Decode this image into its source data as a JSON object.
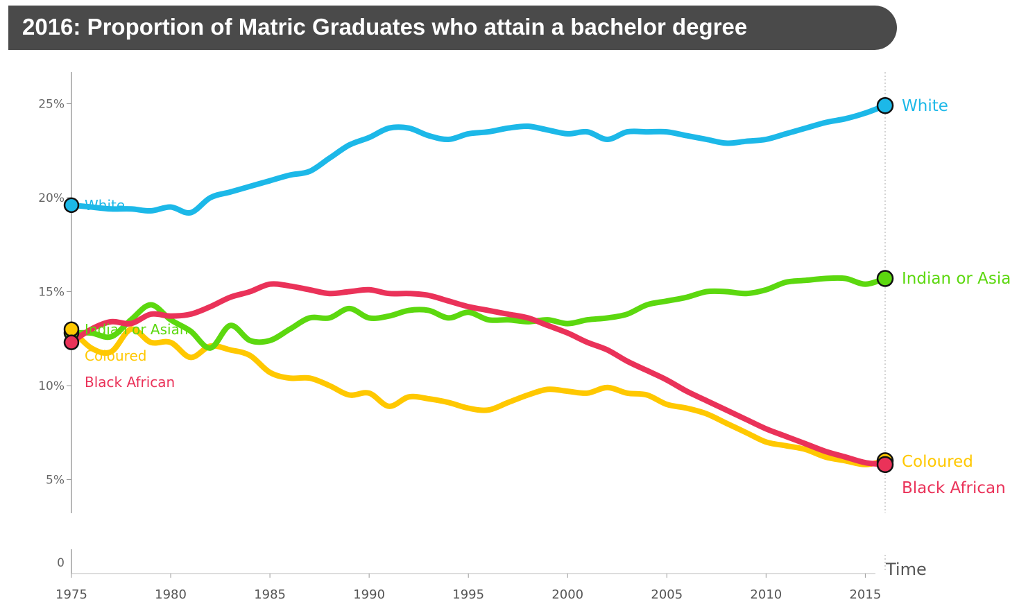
{
  "chart_data": {
    "type": "line",
    "title": "2016: Proportion of Matric Graduates who attain a bachelor degree",
    "xlabel": "Time",
    "ylabel": "",
    "x_ticks": [
      "1975",
      "1980",
      "1985",
      "1990",
      "1995",
      "2000",
      "2005",
      "2010",
      "2015"
    ],
    "y_ticks": [
      "0",
      "5%",
      "10%",
      "15%",
      "20%",
      "25%"
    ],
    "y_tick_values": [
      0,
      5,
      10,
      15,
      20,
      25
    ],
    "xlim": [
      1975,
      2016
    ],
    "ylim": [
      0,
      27
    ],
    "grid": false,
    "series": [
      {
        "name": "White",
        "color": "#1cb8e8",
        "points": [
          [
            1975,
            19.6
          ],
          [
            1976,
            19.5
          ],
          [
            1977,
            19.4
          ],
          [
            1978,
            19.4
          ],
          [
            1979,
            19.3
          ],
          [
            1980,
            19.5
          ],
          [
            1981,
            19.2
          ],
          [
            1982,
            20.0
          ],
          [
            1983,
            20.3
          ],
          [
            1984,
            20.6
          ],
          [
            1985,
            20.9
          ],
          [
            1986,
            21.2
          ],
          [
            1987,
            21.4
          ],
          [
            1988,
            22.1
          ],
          [
            1989,
            22.8
          ],
          [
            1990,
            23.2
          ],
          [
            1991,
            23.7
          ],
          [
            1992,
            23.7
          ],
          [
            1993,
            23.3
          ],
          [
            1994,
            23.1
          ],
          [
            1995,
            23.4
          ],
          [
            1996,
            23.5
          ],
          [
            1997,
            23.7
          ],
          [
            1998,
            23.8
          ],
          [
            1999,
            23.6
          ],
          [
            2000,
            23.4
          ],
          [
            2001,
            23.5
          ],
          [
            2002,
            23.1
          ],
          [
            2003,
            23.5
          ],
          [
            2004,
            23.5
          ],
          [
            2005,
            23.5
          ],
          [
            2006,
            23.3
          ],
          [
            2007,
            23.1
          ],
          [
            2008,
            22.9
          ],
          [
            2009,
            23.0
          ],
          [
            2010,
            23.1
          ],
          [
            2011,
            23.4
          ],
          [
            2012,
            23.7
          ],
          [
            2013,
            24.0
          ],
          [
            2014,
            24.2
          ],
          [
            2015,
            24.5
          ],
          [
            2016,
            24.9
          ]
        ]
      },
      {
        "name": "Indian or Asian",
        "color": "#5cd80f",
        "points": [
          [
            1975,
            12.8
          ],
          [
            1976,
            12.8
          ],
          [
            1977,
            12.6
          ],
          [
            1978,
            13.5
          ],
          [
            1979,
            14.3
          ],
          [
            1980,
            13.5
          ],
          [
            1981,
            12.9
          ],
          [
            1982,
            12.0
          ],
          [
            1983,
            13.2
          ],
          [
            1984,
            12.4
          ],
          [
            1985,
            12.4
          ],
          [
            1986,
            13.0
          ],
          [
            1987,
            13.6
          ],
          [
            1988,
            13.6
          ],
          [
            1989,
            14.1
          ],
          [
            1990,
            13.6
          ],
          [
            1991,
            13.7
          ],
          [
            1992,
            14.0
          ],
          [
            1993,
            14.0
          ],
          [
            1994,
            13.6
          ],
          [
            1995,
            13.9
          ],
          [
            1996,
            13.5
          ],
          [
            1997,
            13.5
          ],
          [
            1998,
            13.4
          ],
          [
            1999,
            13.5
          ],
          [
            2000,
            13.3
          ],
          [
            2001,
            13.5
          ],
          [
            2002,
            13.6
          ],
          [
            2003,
            13.8
          ],
          [
            2004,
            14.3
          ],
          [
            2005,
            14.5
          ],
          [
            2006,
            14.7
          ],
          [
            2007,
            15.0
          ],
          [
            2008,
            15.0
          ],
          [
            2009,
            14.9
          ],
          [
            2010,
            15.1
          ],
          [
            2011,
            15.5
          ],
          [
            2012,
            15.6
          ],
          [
            2013,
            15.7
          ],
          [
            2014,
            15.7
          ],
          [
            2015,
            15.4
          ],
          [
            2016,
            15.7
          ]
        ]
      },
      {
        "name": "Coloured",
        "color": "#ffc800",
        "points": [
          [
            1975,
            13.0
          ],
          [
            1976,
            12.0
          ],
          [
            1977,
            11.8
          ],
          [
            1978,
            13.0
          ],
          [
            1979,
            12.3
          ],
          [
            1980,
            12.3
          ],
          [
            1981,
            11.5
          ],
          [
            1982,
            12.1
          ],
          [
            1983,
            11.9
          ],
          [
            1984,
            11.6
          ],
          [
            1985,
            10.7
          ],
          [
            1986,
            10.4
          ],
          [
            1987,
            10.4
          ],
          [
            1988,
            10.0
          ],
          [
            1989,
            9.5
          ],
          [
            1990,
            9.6
          ],
          [
            1991,
            8.9
          ],
          [
            1992,
            9.4
          ],
          [
            1993,
            9.3
          ],
          [
            1994,
            9.1
          ],
          [
            1995,
            8.8
          ],
          [
            1996,
            8.7
          ],
          [
            1997,
            9.1
          ],
          [
            1998,
            9.5
          ],
          [
            1999,
            9.8
          ],
          [
            2000,
            9.7
          ],
          [
            2001,
            9.6
          ],
          [
            2002,
            9.9
          ],
          [
            2003,
            9.6
          ],
          [
            2004,
            9.5
          ],
          [
            2005,
            9.0
          ],
          [
            2006,
            8.8
          ],
          [
            2007,
            8.5
          ],
          [
            2008,
            8.0
          ],
          [
            2009,
            7.5
          ],
          [
            2010,
            7.0
          ],
          [
            2011,
            6.8
          ],
          [
            2012,
            6.6
          ],
          [
            2013,
            6.2
          ],
          [
            2014,
            6.0
          ],
          [
            2015,
            5.8
          ],
          [
            2016,
            6.0
          ]
        ]
      },
      {
        "name": "Black African",
        "color": "#ea3259",
        "points": [
          [
            1975,
            12.3
          ],
          [
            1976,
            13.0
          ],
          [
            1977,
            13.4
          ],
          [
            1978,
            13.3
          ],
          [
            1979,
            13.8
          ],
          [
            1980,
            13.7
          ],
          [
            1981,
            13.8
          ],
          [
            1982,
            14.2
          ],
          [
            1983,
            14.7
          ],
          [
            1984,
            15.0
          ],
          [
            1985,
            15.4
          ],
          [
            1986,
            15.3
          ],
          [
            1987,
            15.1
          ],
          [
            1988,
            14.9
          ],
          [
            1989,
            15.0
          ],
          [
            1990,
            15.1
          ],
          [
            1991,
            14.9
          ],
          [
            1992,
            14.9
          ],
          [
            1993,
            14.8
          ],
          [
            1994,
            14.5
          ],
          [
            1995,
            14.2
          ],
          [
            1996,
            14.0
          ],
          [
            1997,
            13.8
          ],
          [
            1998,
            13.6
          ],
          [
            1999,
            13.2
          ],
          [
            2000,
            12.8
          ],
          [
            2001,
            12.3
          ],
          [
            2002,
            11.9
          ],
          [
            2003,
            11.3
          ],
          [
            2004,
            10.8
          ],
          [
            2005,
            10.3
          ],
          [
            2006,
            9.7
          ],
          [
            2007,
            9.2
          ],
          [
            2008,
            8.7
          ],
          [
            2009,
            8.2
          ],
          [
            2010,
            7.7
          ],
          [
            2011,
            7.3
          ],
          [
            2012,
            6.9
          ],
          [
            2013,
            6.5
          ],
          [
            2014,
            6.2
          ],
          [
            2015,
            5.9
          ],
          [
            2016,
            5.8
          ]
        ]
      }
    ]
  }
}
